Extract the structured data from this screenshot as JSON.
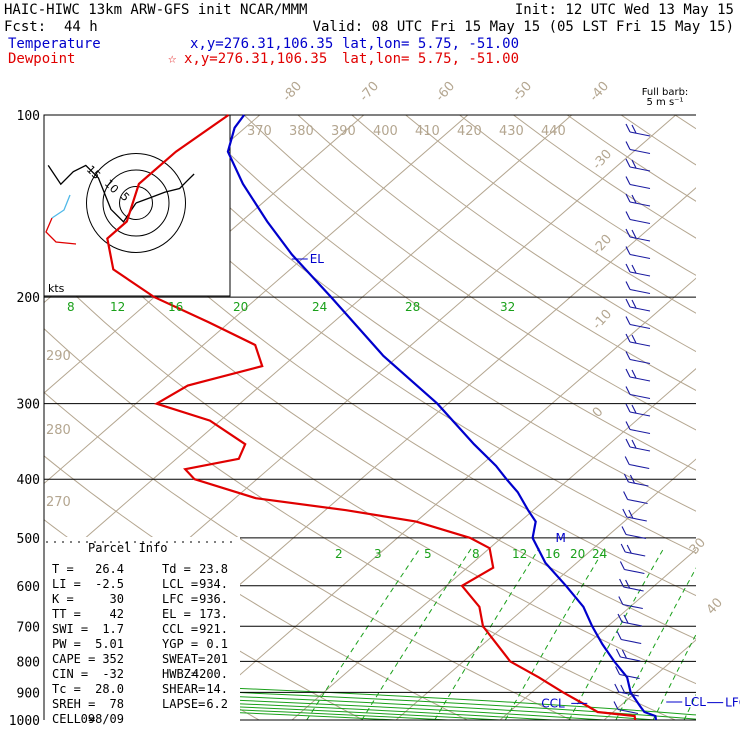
{
  "header": {
    "model_line": "HAIC-HIWC 13km ARW-GFS init   NCAR/MMM",
    "init_line": "Init: 12 UTC Wed 13 May 15",
    "fcst_label": "Fcst:",
    "fcst_value": "44 h",
    "valid_line": "Valid: 08 UTC Fri 15 May 15 (05 LST Fri 15 May 15)",
    "temp_label": "Temperature",
    "temp_xy": "x,y=276.31,106.35",
    "temp_latlon": "lat,lon=  5.75, -51.00",
    "dew_label": "Dewpoint",
    "dew_star": "☆",
    "dew_xy": "x,y=276.31,106.35",
    "dew_latlon": "lat,lon=  5.75, -51.00"
  },
  "colors": {
    "temperature": "#0000cc",
    "dewpoint": "#e00000",
    "isotherm": "#b4a690",
    "mixing_ratio": "#1aa01a",
    "wind_barb": "#1a1aa0"
  },
  "barb_header": {
    "line1": "Full barb:",
    "line2": "5 m s⁻¹"
  },
  "chart_data": {
    "type": "skew-t",
    "y_scale": "log-pressure",
    "pressure_levels": [
      100,
      200,
      300,
      400,
      500,
      600,
      700,
      800,
      900,
      1000
    ],
    "temperature_top_labels": [
      "-80",
      "-70",
      "-60",
      "-50",
      "-40"
    ],
    "temperature_right_labels": [
      "-30",
      "-20",
      "-10",
      "0",
      "30",
      "40"
    ],
    "theta_labels": [
      "370",
      "380",
      "390",
      "400",
      "410",
      "420",
      "430",
      "440"
    ],
    "theta_left_labels": [
      "290",
      "280",
      "270"
    ],
    "theta_e_labels": [
      "8",
      "12",
      "16",
      "20",
      "24",
      "28",
      "32"
    ],
    "mixing_ratio_labels": [
      "2",
      "3",
      "5",
      "8",
      "12",
      "16",
      "20",
      "24"
    ],
    "series": [
      {
        "name": "Temperature",
        "color": "#0000cc",
        "points": [
          [
            1000,
            25.0
          ],
          [
            985,
            24.5
          ],
          [
            970,
            23.0
          ],
          [
            950,
            22.0
          ],
          [
            900,
            19.5
          ],
          [
            850,
            17.5
          ],
          [
            800,
            14.5
          ],
          [
            750,
            11.5
          ],
          [
            700,
            8.5
          ],
          [
            650,
            5.5
          ],
          [
            600,
            1.5
          ],
          [
            550,
            -3.0
          ],
          [
            500,
            -7.0
          ],
          [
            470,
            -8.5
          ],
          [
            450,
            -10.5
          ],
          [
            420,
            -13.5
          ],
          [
            400,
            -16.0
          ],
          [
            380,
            -18.5
          ],
          [
            350,
            -23.0
          ],
          [
            300,
            -31.0
          ],
          [
            250,
            -41.5
          ],
          [
            200,
            -53.0
          ],
          [
            170,
            -61.5
          ],
          [
            150,
            -67.5
          ],
          [
            130,
            -74.0
          ],
          [
            115,
            -79.0
          ],
          [
            105,
            -81.0
          ],
          [
            100,
            -81.5
          ]
        ]
      },
      {
        "name": "Dewpoint",
        "color": "#e00000",
        "points": [
          [
            1000,
            23.0
          ],
          [
            985,
            22.5
          ],
          [
            970,
            18.5
          ],
          [
            950,
            17.0
          ],
          [
            900,
            13.0
          ],
          [
            850,
            9.0
          ],
          [
            800,
            4.5
          ],
          [
            700,
            -2.0
          ],
          [
            650,
            -4.5
          ],
          [
            600,
            -8.5
          ],
          [
            560,
            -7.5
          ],
          [
            520,
            -10.0
          ],
          [
            500,
            -13.0
          ],
          [
            470,
            -20.0
          ],
          [
            450,
            -28.0
          ],
          [
            430,
            -38.0
          ],
          [
            400,
            -46.0
          ],
          [
            385,
            -48.0
          ],
          [
            370,
            -44.0
          ],
          [
            350,
            -45.0
          ],
          [
            320,
            -51.0
          ],
          [
            300,
            -58.0
          ],
          [
            280,
            -57.0
          ],
          [
            260,
            -52.0
          ],
          [
            240,
            -55.0
          ],
          [
            220,
            -62.0
          ],
          [
            200,
            -70.0
          ],
          [
            180,
            -77.0
          ],
          [
            160,
            -81.0
          ],
          [
            150,
            -81.0
          ],
          [
            130,
            -84.0
          ],
          [
            115,
            -84.0
          ],
          [
            100,
            -83.0
          ]
        ]
      }
    ],
    "annotations": [
      {
        "label": "EL",
        "pressure": 173,
        "temp": -61.0
      },
      {
        "label": "M",
        "pressure": 500,
        "temp": -5.0
      },
      {
        "label": "CCL",
        "pressure": 921,
        "temp": 16.0
      },
      {
        "label": "LCL",
        "pressure": 934,
        "temp": 24.0
      },
      {
        "label": "LFC",
        "pressure": 936,
        "temp": 28.0
      }
    ],
    "hodograph": {
      "units_label": "kts",
      "ring_labels": [
        "15",
        "10",
        "5"
      ],
      "path": [
        [
          0.0,
          0.0
        ],
        [
          -2.0,
          -3.0
        ],
        [
          -4.0,
          -1.0
        ],
        [
          -6.0,
          4.0
        ],
        [
          -8.0,
          6.0
        ],
        [
          -10.0,
          5.0
        ],
        [
          -12.0,
          3.0
        ],
        [
          -14.0,
          6.0
        ]
      ],
      "path2": [
        [
          0.0,
          0.0
        ],
        [
          4.0,
          1.5
        ],
        [
          8.0,
          3.0
        ],
        [
          12.0,
          4.0
        ],
        [
          14.0,
          6.0
        ],
        [
          16.0,
          8.0
        ]
      ]
    }
  },
  "parcel_info": {
    "title": "Parcel Info",
    "rows": [
      [
        "T   =",
        "26.4",
        "Td =",
        "23.8"
      ],
      [
        "LI  =",
        "-2.5",
        "LCL =",
        "934."
      ],
      [
        "K   =",
        "30",
        "LFC =",
        "936."
      ],
      [
        "TT  =",
        "42",
        "EL  =",
        "173."
      ],
      [
        "SWI =",
        "1.7",
        "CCL =",
        "921."
      ],
      [
        "PW  =",
        "5.01",
        "YGP =",
        "0.1"
      ],
      [
        "CAPE =",
        "352",
        "SWEAT=",
        "201"
      ],
      [
        "CIN  =",
        "-32",
        "HWBZ=",
        "4200."
      ],
      [
        "Tc   =",
        "28.0",
        "SHEAR=",
        "14."
      ],
      [
        "SREH =",
        "78",
        "LAPSE=",
        "6.2"
      ],
      [
        "CELL =",
        "098/09",
        "",
        ""
      ]
    ]
  }
}
